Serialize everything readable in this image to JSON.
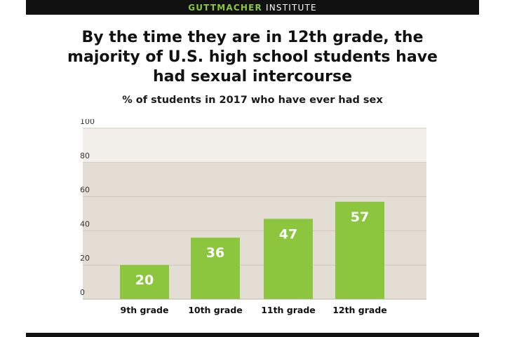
{
  "header": {
    "brand_bold": "GUTTMACHER",
    "brand_rest": "INSTITUTE"
  },
  "title_lines": [
    "By the time they are in 12th grade, the",
    "majority of U.S. high school students have",
    "had sexual intercourse"
  ],
  "colors": {
    "bar": "#8cc63f",
    "plot_bg": "#e4ddd3",
    "plot_bg_top": "#f3f0ec",
    "text": "#111111"
  },
  "chart_data": {
    "type": "bar",
    "title": "",
    "subtitle": "% of students in 2017 who have ever had sex",
    "xlabel": "",
    "ylabel": "",
    "categories": [
      "9th grade",
      "10th grade",
      "11th grade",
      "12th grade"
    ],
    "values": [
      20,
      36,
      47,
      57
    ],
    "data_labels": [
      "20",
      "36",
      "47",
      "57"
    ],
    "ylim": [
      0,
      100
    ],
    "yticks": [
      0,
      20,
      40,
      60,
      80,
      100
    ],
    "ytick_labels": [
      "0",
      "20",
      "40",
      "60",
      "80",
      "100"
    ],
    "grid": true,
    "legend": "none"
  }
}
